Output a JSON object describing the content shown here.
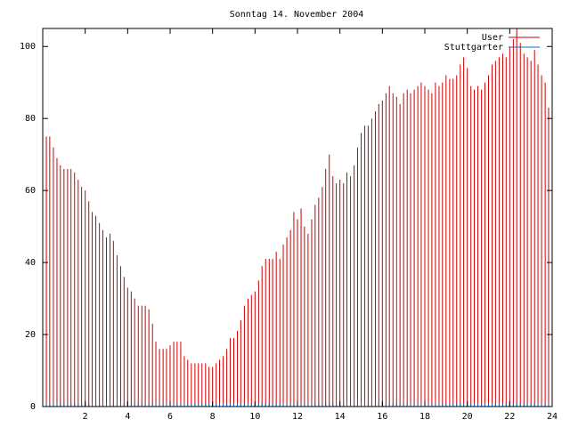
{
  "chart_data": {
    "type": "impulse",
    "title": "Sonntag 14. November 2004",
    "xlim": [
      0,
      24
    ],
    "xticks": [
      2,
      4,
      6,
      8,
      10,
      12,
      14,
      16,
      18,
      20,
      22,
      24
    ],
    "ylim": [
      0,
      105
    ],
    "yticks": [
      0,
      20,
      40,
      60,
      80,
      100
    ],
    "legend": "top-right",
    "x": [
      0,
      0.17,
      0.33,
      0.5,
      0.67,
      0.83,
      1,
      1.17,
      1.33,
      1.5,
      1.67,
      1.83,
      2,
      2.17,
      2.33,
      2.5,
      2.67,
      2.83,
      3,
      3.17,
      3.33,
      3.5,
      3.67,
      3.83,
      4,
      4.17,
      4.33,
      4.5,
      4.67,
      4.83,
      5,
      5.17,
      5.33,
      5.5,
      5.67,
      5.83,
      6,
      6.17,
      6.33,
      6.5,
      6.67,
      6.83,
      7,
      7.17,
      7.33,
      7.5,
      7.67,
      7.83,
      8,
      8.17,
      8.33,
      8.5,
      8.67,
      8.83,
      9,
      9.17,
      9.33,
      9.5,
      9.67,
      9.83,
      10,
      10.17,
      10.33,
      10.5,
      10.67,
      10.83,
      11,
      11.17,
      11.33,
      11.5,
      11.67,
      11.83,
      12,
      12.17,
      12.33,
      12.5,
      12.67,
      12.83,
      13,
      13.17,
      13.33,
      13.5,
      13.67,
      13.83,
      14,
      14.17,
      14.33,
      14.5,
      14.67,
      14.83,
      15,
      15.17,
      15.33,
      15.5,
      15.67,
      15.83,
      16,
      16.17,
      16.33,
      16.5,
      16.67,
      16.83,
      17,
      17.17,
      17.33,
      17.5,
      17.67,
      17.83,
      18,
      18.17,
      18.33,
      18.5,
      18.67,
      18.83,
      19,
      19.17,
      19.33,
      19.5,
      19.67,
      19.83,
      20,
      20.17,
      20.33,
      20.5,
      20.67,
      20.83,
      21,
      21.17,
      21.33,
      21.5,
      21.67,
      21.83,
      22,
      22.17,
      22.33,
      22.5,
      22.67,
      22.83,
      23,
      23.17,
      23.33,
      23.5,
      23.67,
      23.83
    ],
    "series": [
      {
        "name": "User",
        "color": "#d00000",
        "values": [
          76,
          75,
          75,
          72,
          69,
          67,
          66,
          66,
          66,
          65,
          63,
          61,
          60,
          57,
          54,
          53,
          51,
          49,
          47,
          48,
          46,
          42,
          39,
          36,
          33,
          32,
          30,
          28,
          28,
          28,
          27,
          23,
          18,
          16,
          16,
          16,
          17,
          18,
          18,
          18,
          14,
          13,
          12,
          12,
          12,
          12,
          12,
          11,
          11,
          12,
          13,
          14,
          16,
          19,
          19,
          21,
          24,
          28,
          30,
          31,
          32,
          35,
          39,
          41,
          41,
          41,
          43,
          41,
          45,
          47,
          49,
          54,
          52,
          55,
          50,
          48,
          52,
          56,
          58,
          61,
          66,
          70,
          64,
          62,
          63,
          62,
          65,
          64,
          67,
          72,
          76,
          78,
          78,
          80,
          82,
          84,
          85,
          87,
          89,
          87,
          86,
          84,
          87,
          88,
          87,
          88,
          89,
          90,
          89,
          88,
          87,
          90,
          89,
          90,
          92,
          91,
          91,
          92,
          95,
          97,
          94,
          89,
          88,
          89,
          88,
          90,
          92,
          95,
          96,
          97,
          98,
          97,
          100,
          102,
          105,
          101,
          98,
          97,
          96,
          99,
          95,
          92,
          90,
          83
        ]
      },
      {
        "name": "Stuttgarter",
        "color": "#0070c0",
        "values": [
          1,
          1,
          1,
          1,
          1,
          1,
          1,
          1,
          1,
          1,
          1,
          1,
          1,
          1,
          1,
          1,
          1,
          1,
          1,
          1,
          1,
          1,
          1,
          1,
          1,
          1,
          1,
          1,
          1,
          1,
          1,
          1,
          1,
          1,
          1,
          1,
          1,
          1,
          1,
          1,
          1,
          1,
          1,
          1,
          1,
          1,
          1,
          1,
          1,
          1,
          1,
          1,
          1,
          1,
          1,
          1,
          1,
          1,
          1,
          1,
          1,
          1,
          1,
          1,
          1,
          1,
          1,
          1,
          1,
          1,
          1,
          1,
          1,
          1,
          1,
          1,
          1,
          1,
          1,
          1,
          1,
          1,
          1,
          1,
          1,
          1,
          1,
          1,
          1,
          1,
          1,
          1,
          1,
          1,
          1,
          1,
          1,
          1,
          1,
          1,
          1,
          1,
          1,
          1,
          1,
          1,
          1,
          1,
          1,
          1,
          1,
          1,
          1,
          1,
          1,
          1,
          1,
          1,
          1,
          1,
          1,
          1,
          1,
          1,
          1,
          1,
          1,
          1,
          1,
          1,
          1,
          1,
          1,
          1,
          1,
          1,
          1,
          1,
          1,
          1,
          1,
          1,
          1,
          1
        ]
      }
    ]
  }
}
